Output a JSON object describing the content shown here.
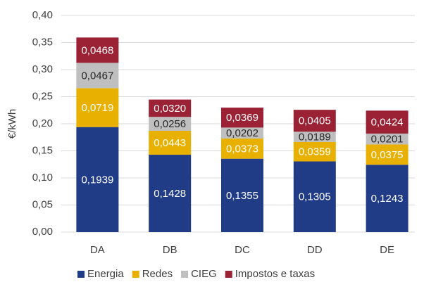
{
  "chart_data": {
    "type": "stacked_bar",
    "ylabel": "€/kWh",
    "categories": [
      "DA",
      "DB",
      "DC",
      "DD",
      "DE"
    ],
    "series": [
      {
        "name": "Energia",
        "color": "#203c86",
        "values": [
          0.1939,
          0.1428,
          0.1355,
          0.1305,
          0.1243
        ],
        "value_labels": [
          "0,1939",
          "0,1428",
          "0,1355",
          "0,1305",
          "0,1243"
        ]
      },
      {
        "name": "Redes",
        "color": "#e8b000",
        "values": [
          0.0719,
          0.0443,
          0.0373,
          0.0359,
          0.0375
        ],
        "value_labels": [
          "0,0719",
          "0,0443",
          "0,0373",
          "0,0359",
          "0,0375"
        ]
      },
      {
        "name": "CIEG",
        "color": "#bfbfbf",
        "values": [
          0.0467,
          0.0256,
          0.0202,
          0.0189,
          0.0201
        ],
        "value_labels": [
          "0,0467",
          "0,0256",
          "0,0202",
          "0,0189",
          "0,0201"
        ]
      },
      {
        "name": "Impostos e taxas",
        "color": "#9b2235",
        "values": [
          0.0468,
          0.032,
          0.0369,
          0.0405,
          0.0424
        ],
        "value_labels": [
          "0,0468",
          "0,0320",
          "0,0369",
          "0,0405",
          "0,0424"
        ]
      }
    ],
    "ylim": [
      0,
      0.4
    ],
    "yticks": [
      {
        "value": 0,
        "label": "0,00"
      },
      {
        "value": 0.05,
        "label": "0,05"
      },
      {
        "value": 0.1,
        "label": "0,10"
      },
      {
        "value": 0.15,
        "label": "0,15"
      },
      {
        "value": 0.2,
        "label": "0,20"
      },
      {
        "value": 0.25,
        "label": "0,25"
      },
      {
        "value": 0.3,
        "label": "0,30"
      },
      {
        "value": 0.35,
        "label": "0,35"
      },
      {
        "value": 0.4,
        "label": "0,40"
      }
    ],
    "grid": true,
    "legend": "bottom"
  }
}
